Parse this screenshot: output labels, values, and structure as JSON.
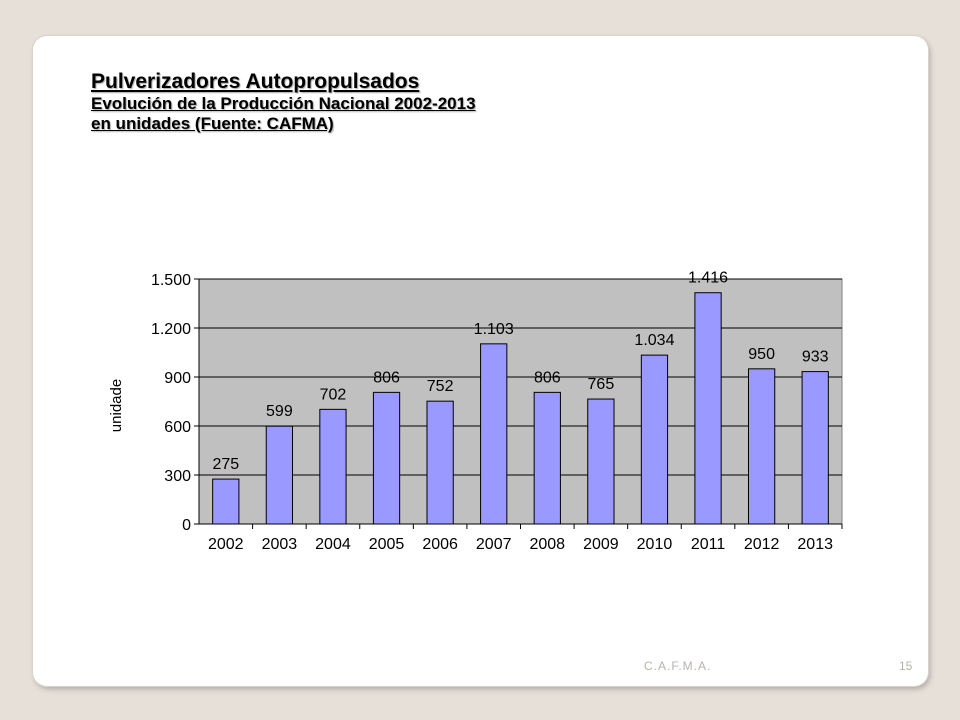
{
  "slide": {
    "title": "Pulverizadores Autopropulsados",
    "subtitle": "Evolución de la Producción Nacional 2002-2013",
    "subtitle2": "en unidades (Fuente: CAFMA)",
    "footer": "C.A.F.M.A.",
    "page_number": "15"
  },
  "colors": {
    "bar_fill": "#9999ff",
    "plot_bg": "#c0c0c0",
    "gridline": "#000000"
  },
  "chart_data": {
    "type": "bar",
    "title": "",
    "xlabel": "",
    "ylabel": "unidade",
    "categories": [
      "2002",
      "2003",
      "2004",
      "2005",
      "2006",
      "2007",
      "2008",
      "2009",
      "2010",
      "2011",
      "2012",
      "2013"
    ],
    "values": [
      275,
      599,
      702,
      806,
      752,
      1103,
      806,
      765,
      1034,
      1416,
      950,
      933
    ],
    "value_labels": [
      "275",
      "599",
      "702",
      "806",
      "752",
      "1.103",
      "806",
      "765",
      "1.034",
      "1.416",
      "950",
      "933"
    ],
    "ylim": [
      0,
      1500
    ],
    "yticks": [
      0,
      300,
      600,
      900,
      1200,
      1500
    ],
    "ytick_labels": [
      "0",
      "300",
      "600",
      "900",
      "1.200",
      "1.500"
    ],
    "grid": true
  }
}
